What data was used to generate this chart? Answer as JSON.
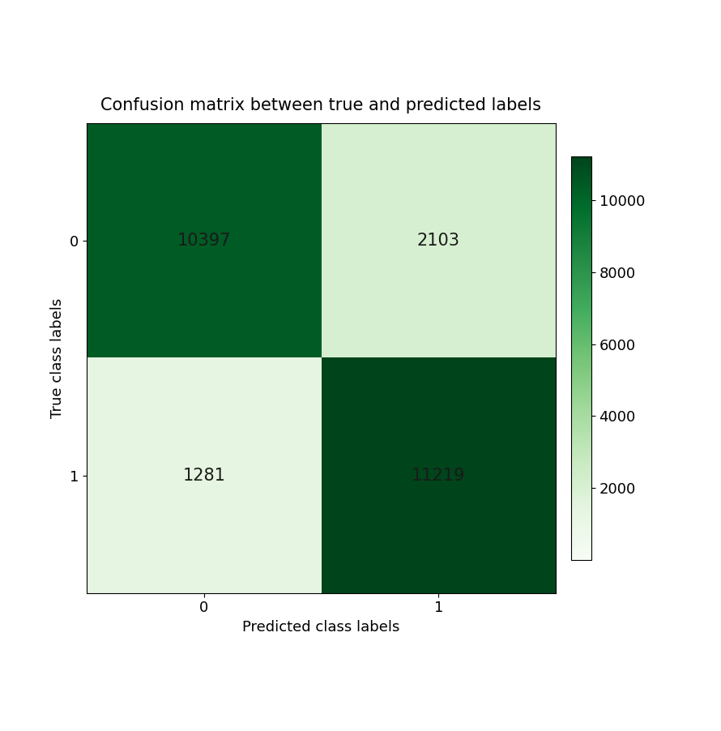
{
  "matrix": [
    [
      10397,
      2103
    ],
    [
      1281,
      11219
    ]
  ],
  "title": "Confusion matrix between true and predicted labels",
  "xlabel": "Predicted class labels",
  "ylabel": "True class labels",
  "x_tick_labels": [
    "0",
    "1"
  ],
  "y_tick_labels": [
    "0",
    "1"
  ],
  "colormap": "Greens",
  "vmin": 0,
  "vmax": 11219,
  "cbar_ticks": [
    2000,
    4000,
    6000,
    8000,
    10000
  ],
  "title_fontsize": 15,
  "label_fontsize": 13,
  "tick_fontsize": 13,
  "cell_text_fontsize": 15,
  "text_color": "#1a1a1a",
  "figsize": [
    8.9,
    9.02
  ],
  "dpi": 100
}
